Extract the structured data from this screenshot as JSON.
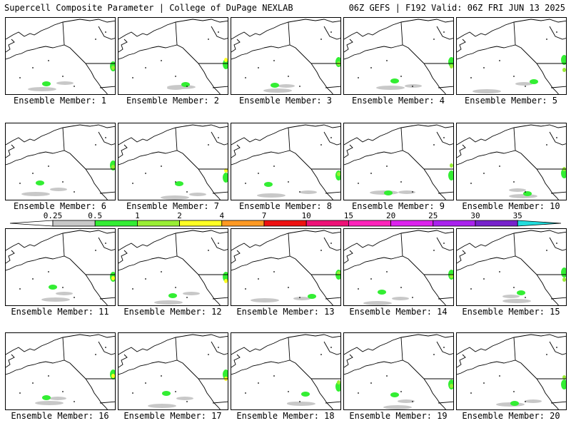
{
  "header": {
    "left": "Supercell Composite Parameter | College of DuPage NEXLAB",
    "right": "06Z GEFS | F192 Valid: 06Z FRI JUN 13 2025"
  },
  "members": [
    "Ensemble Member: 1",
    "Ensemble Member: 2",
    "Ensemble Member: 3",
    "Ensemble Member: 4",
    "Ensemble Member: 5",
    "Ensemble Member: 6",
    "Ensemble Member: 7",
    "Ensemble Member: 8",
    "Ensemble Member: 9",
    "Ensemble Member: 10",
    "Ensemble Member: 11",
    "Ensemble Member: 12",
    "Ensemble Member: 13",
    "Ensemble Member: 14",
    "Ensemble Member: 15",
    "Ensemble Member: 16",
    "Ensemble Member: 17",
    "Ensemble Member: 18",
    "Ensemble Member: 19",
    "Ensemble Member: 20"
  ],
  "colorbar": {
    "labels": [
      "0.25",
      "0.5",
      "1",
      "2",
      "4",
      "7",
      "10",
      "15",
      "20",
      "25",
      "30",
      "35"
    ],
    "colors": [
      "#c8c8c8",
      "#33ee33",
      "#99ee33",
      "#ffff22",
      "#ff9922",
      "#ee1111",
      "#ee1177",
      "#ff22bb",
      "#dd22ee",
      "#aa22ee",
      "#7722cc",
      "#aa55dd",
      "#22dddd"
    ]
  }
}
